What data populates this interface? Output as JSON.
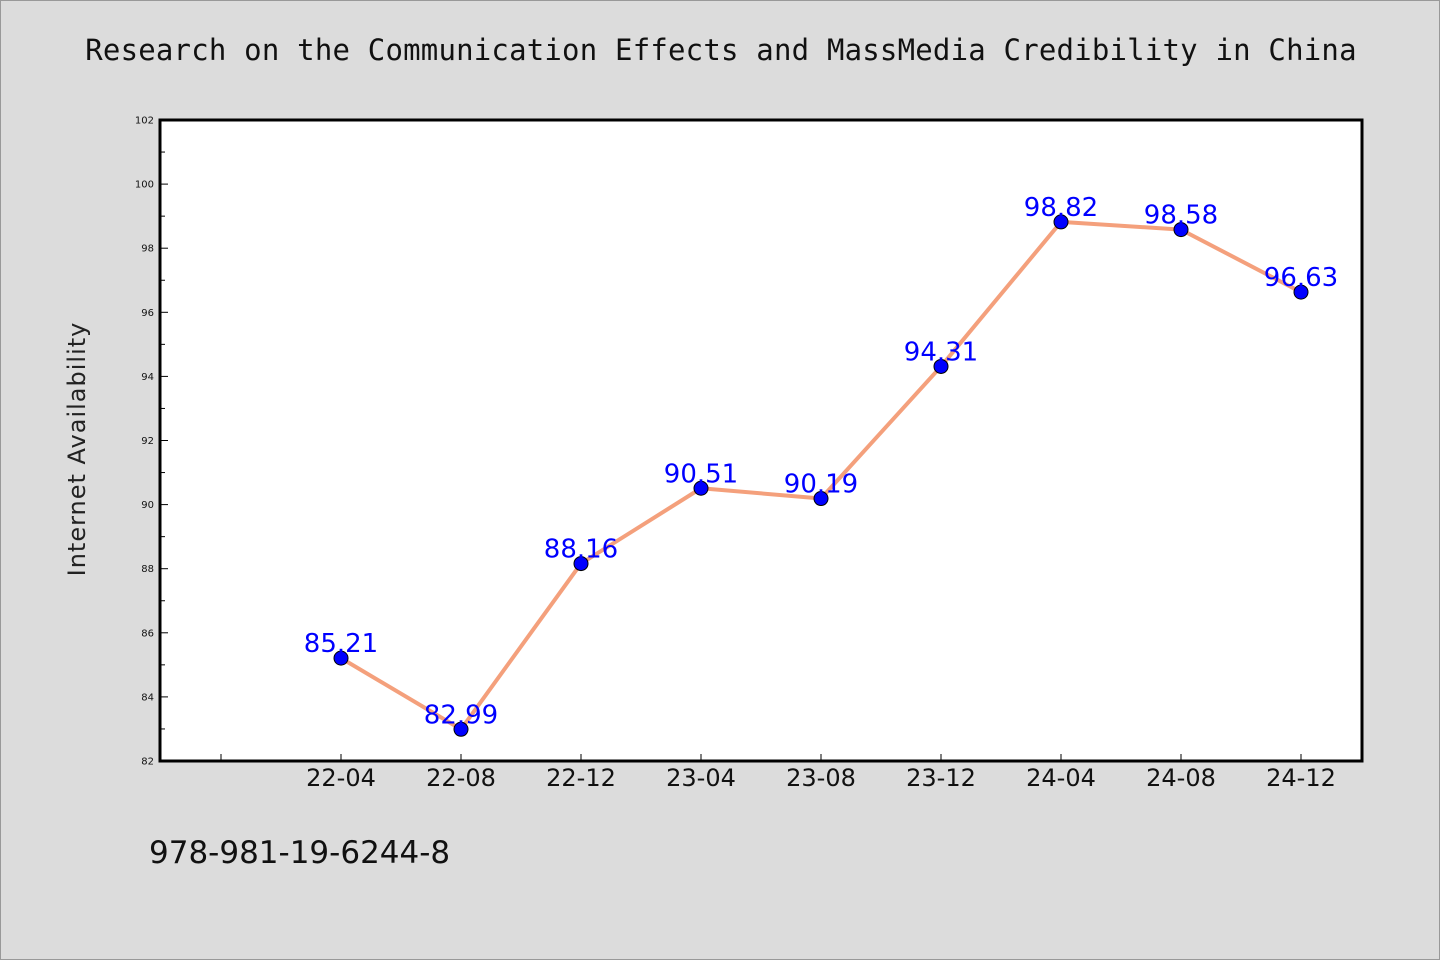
{
  "chart_data": {
    "type": "line",
    "title": "Research on the Communication Effects and MassMedia Credibility in China",
    "xlabel": "",
    "ylabel": "Internet Availability",
    "categories": [
      "22-04",
      "22-08",
      "22-12",
      "23-04",
      "23-08",
      "23-12",
      "24-04",
      "24-08",
      "24-12"
    ],
    "series": [
      {
        "values": [
          85.21,
          82.99,
          88.16,
          90.51,
          90.19,
          94.31,
          98.82,
          98.58,
          96.63
        ],
        "line_color": "#f4a07c",
        "marker_color": "#0000ff",
        "label_color": "#0000ff"
      }
    ],
    "ylim": [
      82,
      102
    ],
    "yticks": [
      "82",
      "84",
      "86",
      "88",
      "90",
      "92",
      "94",
      "96",
      "98",
      "100",
      "102"
    ],
    "grid": false,
    "legend": "none"
  },
  "footer": {
    "isbn": "978-981-19-6244-8"
  },
  "colors": {
    "background": "#dcdcdc",
    "plot_background": "#ffffff",
    "axes": "#000000"
  }
}
